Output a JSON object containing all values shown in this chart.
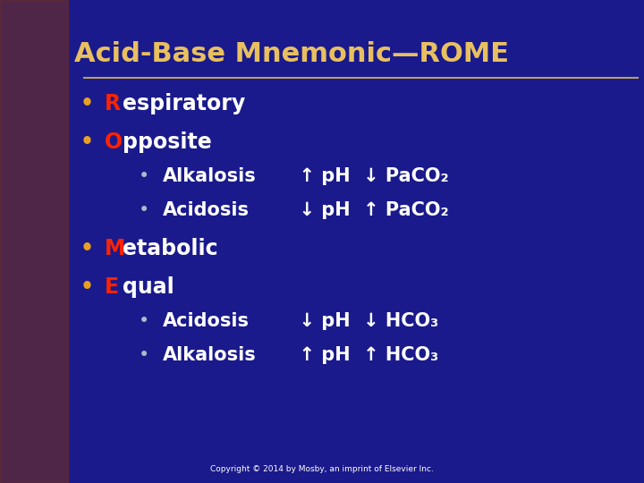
{
  "title": "Acid-Base Mnemonic—ROME",
  "title_color": "#E8C060",
  "bg_color": "#1a1a8c",
  "bullet_color": "#E8A020",
  "white_color": "#FFFFFF",
  "red_color": "#FF2200",
  "line_color": "#B8A060",
  "sub_bullet_color": "#AABBCC",
  "bullet_char": "•",
  "copyright": "Copyright © 2014 by Mosby, an imprint of Elsevier Inc.",
  "items": [
    {
      "letter": "R",
      "rest": "espiratory",
      "sub": false
    },
    {
      "letter": "O",
      "rest": "pposite",
      "sub": false
    },
    {
      "letter": "Alkalosis",
      "rest": "  ↑ pH  ↓ PaCO₂",
      "sub": true
    },
    {
      "letter": "Acidosis",
      "rest": "  ↓ pH  ↑ PaCO₂",
      "sub": true
    },
    {
      "letter": "M",
      "rest": "etabolic",
      "sub": false
    },
    {
      "letter": "E",
      "rest": "qual",
      "sub": false
    },
    {
      "letter": "Acidosis",
      "rest": "  ↓ pH  ↓ HCO₃",
      "sub": true
    },
    {
      "letter": "Alkalosis",
      "rest": "  ↑ pH  ↑ HCO₃",
      "sub": true
    }
  ],
  "y_positions": [
    7.85,
    7.05,
    6.35,
    5.65,
    4.85,
    4.05,
    3.35,
    2.65
  ],
  "main_fontsize": 17,
  "sub_fontsize": 15,
  "title_fontsize": 22
}
